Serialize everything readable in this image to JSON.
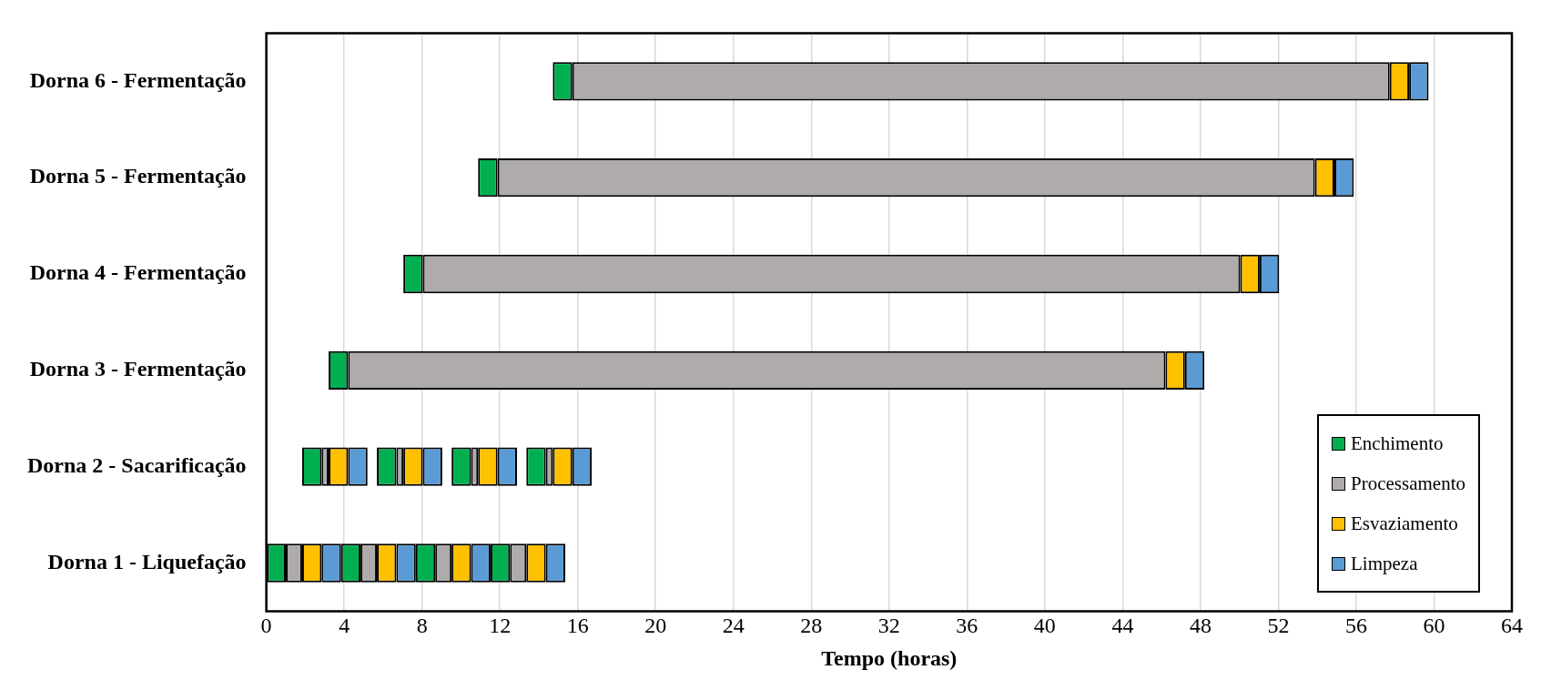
{
  "chart_data": {
    "type": "bar",
    "orientation": "horizontal",
    "xlabel": "Tempo (horas)",
    "categories": [
      "Dorna 6 - Fermentação",
      "Dorna 5 - Fermentação",
      "Dorna 4 - Fermentação",
      "Dorna 3 - Fermentação",
      "Dorna 2 - Sacarificação",
      "Dorna 1 - Liquefação"
    ],
    "xlim": [
      0,
      64
    ],
    "xticks": [
      0,
      4,
      8,
      12,
      16,
      20,
      24,
      28,
      32,
      36,
      40,
      44,
      48,
      52,
      56,
      60,
      64
    ],
    "grid": "x",
    "legend": "bottom right",
    "series": [
      {
        "name": "Enchimento",
        "color": "#00b050",
        "base": [
          14.72,
          10.88,
          7.04,
          3.2,
          1.84,
          0
        ],
        "values": [
          1,
          1,
          1,
          1,
          1,
          1
        ]
      },
      {
        "name": "Processamento",
        "color": "#afabab",
        "base": [
          15.72,
          11.88,
          8.04,
          4.2,
          2.84,
          1
        ],
        "values": [
          42,
          42,
          42,
          42,
          0.36,
          0.84
        ]
      },
      {
        "name": "Esvaziamento",
        "color": "#ffc000",
        "base": [
          57.72,
          53.88,
          50.04,
          46.2,
          3.2,
          1.84
        ],
        "values": [
          1,
          1,
          1,
          1,
          1,
          1
        ]
      },
      {
        "name": "Limpeza",
        "color": "#5b9bd5",
        "base": [
          58.72,
          54.88,
          51.04,
          47.2,
          4.2,
          2.84
        ],
        "values": [
          1,
          1,
          1,
          1,
          1,
          1
        ]
      },
      {
        "color": "#00b050",
        "base": [
          null,
          null,
          null,
          null,
          5.68,
          3.84
        ],
        "values": [
          null,
          null,
          null,
          null,
          1,
          1
        ]
      },
      {
        "color": "#afabab",
        "base": [
          null,
          null,
          null,
          null,
          6.68,
          4.84
        ],
        "values": [
          null,
          null,
          null,
          null,
          0.36,
          0.84
        ]
      },
      {
        "color": "#ffc000",
        "base": [
          null,
          null,
          null,
          null,
          7.04,
          5.68
        ],
        "values": [
          null,
          null,
          null,
          null,
          1,
          1
        ]
      },
      {
        "color": "#5b9bd5",
        "base": [
          null,
          null,
          null,
          null,
          8.04,
          6.68
        ],
        "values": [
          null,
          null,
          null,
          null,
          1,
          1
        ]
      },
      {
        "color": "#00b050",
        "base": [
          null,
          null,
          null,
          null,
          9.52,
          7.68
        ],
        "values": [
          null,
          null,
          null,
          null,
          1,
          1
        ]
      },
      {
        "color": "#afabab",
        "base": [
          null,
          null,
          null,
          null,
          10.52,
          8.68
        ],
        "values": [
          null,
          null,
          null,
          null,
          0.36,
          0.84
        ]
      },
      {
        "color": "#ffc000",
        "base": [
          null,
          null,
          null,
          null,
          10.88,
          9.52
        ],
        "values": [
          null,
          null,
          null,
          null,
          1,
          1
        ]
      },
      {
        "color": "#5b9bd5",
        "base": [
          null,
          null,
          null,
          null,
          11.88,
          10.52
        ],
        "values": [
          null,
          null,
          null,
          null,
          1,
          1
        ]
      },
      {
        "color": "#00b050",
        "base": [
          null,
          null,
          null,
          null,
          13.36,
          11.52
        ],
        "values": [
          null,
          null,
          null,
          null,
          1,
          1
        ]
      },
      {
        "color": "#afabab",
        "base": [
          null,
          null,
          null,
          null,
          14.36,
          12.52
        ],
        "values": [
          null,
          null,
          null,
          null,
          0.36,
          0.84
        ]
      },
      {
        "color": "#ffc000",
        "base": [
          null,
          null,
          null,
          null,
          14.72,
          13.36
        ],
        "values": [
          null,
          null,
          null,
          null,
          1,
          1
        ]
      },
      {
        "color": "#5b9bd5",
        "base": [
          null,
          null,
          null,
          null,
          15.72,
          14.36
        ],
        "values": [
          null,
          null,
          null,
          null,
          1,
          1
        ]
      }
    ]
  }
}
